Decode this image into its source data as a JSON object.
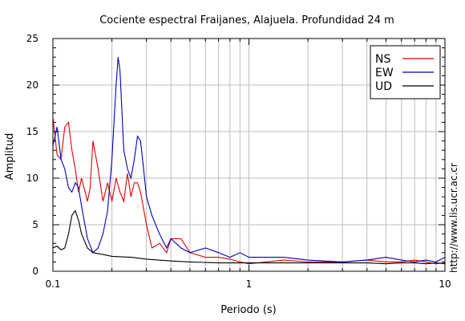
{
  "chart_data": {
    "type": "line",
    "title": "Cociente espectral Fraijanes, Alajuela. Profundidad 24 m",
    "xlabel": "Periodo (s)",
    "ylabel": "Amplitud",
    "xscale": "log",
    "xlim": [
      0.1,
      10
    ],
    "ylim": [
      0,
      25
    ],
    "x_ticks": [
      0.1,
      1,
      10
    ],
    "x_tick_labels": [
      "0.1",
      "1",
      "10"
    ],
    "y_ticks": [
      0,
      5,
      10,
      15,
      20,
      25
    ],
    "y_tick_labels": [
      "0",
      "5",
      "10",
      "15",
      "20",
      "25"
    ],
    "grid": true,
    "legend_position": "top-right",
    "watermark": "http://www.lis.ucr.ac.cr",
    "series": [
      {
        "name": "NS",
        "color": "#e00000",
        "x": [
          0.1,
          0.105,
          0.11,
          0.115,
          0.12,
          0.125,
          0.13,
          0.135,
          0.14,
          0.15,
          0.155,
          0.16,
          0.17,
          0.18,
          0.19,
          0.2,
          0.21,
          0.22,
          0.23,
          0.24,
          0.25,
          0.26,
          0.27,
          0.28,
          0.3,
          0.32,
          0.35,
          0.38,
          0.4,
          0.45,
          0.5,
          0.6,
          0.7,
          0.8,
          0.9,
          1.0,
          1.5,
          2.0,
          3.0,
          4.0,
          5.0,
          6.0,
          7.0,
          8.0,
          9.0,
          10.0
        ],
        "values": [
          16.5,
          12.5,
          12.0,
          15.5,
          16.0,
          13.0,
          11.0,
          8.5,
          10.0,
          7.5,
          9.0,
          14.0,
          11.0,
          7.5,
          9.5,
          7.5,
          10.0,
          8.5,
          7.5,
          10.5,
          8.0,
          9.5,
          9.5,
          8.5,
          5.0,
          2.5,
          3.0,
          2.0,
          3.5,
          3.5,
          2.0,
          1.5,
          1.5,
          1.3,
          1.0,
          0.8,
          1.2,
          1.0,
          1.0,
          1.2,
          1.0,
          1.0,
          1.2,
          1.0,
          0.8,
          0.9
        ]
      },
      {
        "name": "EW",
        "color": "#0000c0",
        "x": [
          0.1,
          0.105,
          0.11,
          0.115,
          0.12,
          0.125,
          0.13,
          0.135,
          0.14,
          0.15,
          0.16,
          0.17,
          0.18,
          0.19,
          0.2,
          0.21,
          0.215,
          0.22,
          0.23,
          0.24,
          0.25,
          0.26,
          0.27,
          0.28,
          0.29,
          0.3,
          0.32,
          0.35,
          0.38,
          0.4,
          0.45,
          0.5,
          0.6,
          0.7,
          0.8,
          0.9,
          1.0,
          1.5,
          2.0,
          3.0,
          4.0,
          5.0,
          6.0,
          7.0,
          8.0,
          9.0,
          10.0
        ],
        "values": [
          13.5,
          15.5,
          12.0,
          11.0,
          9.0,
          8.5,
          9.5,
          9.0,
          7.0,
          3.5,
          2.0,
          2.5,
          4.0,
          6.5,
          12.0,
          20.0,
          23.0,
          21.5,
          13.0,
          11.0,
          10.0,
          12.0,
          14.5,
          14.0,
          11.0,
          8.0,
          6.0,
          4.0,
          2.5,
          3.5,
          2.5,
          2.0,
          2.5,
          2.0,
          1.5,
          2.0,
          1.5,
          1.5,
          1.2,
          1.0,
          1.2,
          1.5,
          1.2,
          1.0,
          1.2,
          1.0,
          1.5
        ]
      },
      {
        "name": "UD",
        "color": "#000000",
        "x": [
          0.1,
          0.105,
          0.11,
          0.115,
          0.12,
          0.125,
          0.13,
          0.135,
          0.14,
          0.15,
          0.16,
          0.18,
          0.2,
          0.25,
          0.3,
          0.4,
          0.5,
          0.7,
          1.0,
          2.0,
          3.0,
          4.0,
          5.0,
          6.0,
          7.0,
          8.0,
          9.0,
          10.0
        ],
        "values": [
          2.5,
          2.7,
          2.3,
          2.5,
          4.0,
          6.0,
          6.5,
          5.5,
          4.0,
          2.5,
          2.0,
          1.8,
          1.6,
          1.5,
          1.3,
          1.1,
          1.0,
          0.9,
          0.9,
          0.9,
          0.9,
          0.9,
          0.8,
          0.9,
          0.9,
          0.8,
          0.9,
          0.8
        ]
      }
    ]
  }
}
